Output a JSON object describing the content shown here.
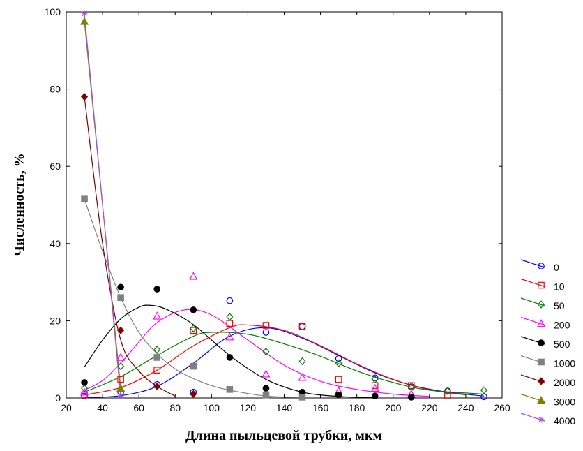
{
  "chart_data": {
    "type": "scatter",
    "xlabel": "Длина пыльцевой трубки, мкм",
    "ylabel": "Численность, %",
    "xlim": [
      20,
      260
    ],
    "ylim": [
      0,
      100
    ],
    "xticks": [
      20,
      40,
      60,
      80,
      100,
      120,
      140,
      160,
      180,
      200,
      220,
      240,
      260
    ],
    "yticks": [
      0,
      20,
      40,
      60,
      80,
      100
    ],
    "x_tick_labels": [
      "20",
      "40",
      "60",
      "80",
      "100",
      "120",
      "140",
      "160",
      "180",
      "200",
      "220",
      "240",
      "260"
    ],
    "y_tick_labels": [
      "0",
      "20",
      "40",
      "60",
      "80",
      "100"
    ],
    "grid": false,
    "legend_position": "right-bottom",
    "series": [
      {
        "name": "0",
        "color": "#0000ff",
        "marker": "circle-open",
        "x": [
          30,
          50,
          70,
          90,
          110,
          130,
          150,
          170,
          190,
          210,
          230,
          250
        ],
        "y": [
          0.5,
          1.5,
          3.5,
          1.5,
          25.2,
          17.0,
          18.5,
          10.2,
          5.2,
          2.9,
          1.8,
          0.3
        ],
        "fit": [
          [
            30,
            0.1
          ],
          [
            50,
            0.6
          ],
          [
            70,
            3.0
          ],
          [
            90,
            9.0
          ],
          [
            110,
            16.0
          ],
          [
            130,
            18.2
          ],
          [
            150,
            15.5
          ],
          [
            170,
            11.0
          ],
          [
            190,
            6.5
          ],
          [
            210,
            3.3
          ],
          [
            230,
            1.5
          ],
          [
            250,
            0.5
          ]
        ]
      },
      {
        "name": "10",
        "color": "#ff0000",
        "marker": "square-open",
        "x": [
          30,
          50,
          70,
          90,
          110,
          130,
          150,
          170,
          190,
          210,
          230
        ],
        "y": [
          0.8,
          4.8,
          7.2,
          17.5,
          19.3,
          18.8,
          18.5,
          4.8,
          3.2,
          3.2,
          0.5
        ],
        "fit": [
          [
            30,
            0.8
          ],
          [
            50,
            2.7
          ],
          [
            70,
            7.2
          ],
          [
            90,
            13.5
          ],
          [
            110,
            18.2
          ],
          [
            120,
            18.9
          ],
          [
            140,
            17.5
          ],
          [
            160,
            13.5
          ],
          [
            180,
            8.8
          ],
          [
            200,
            4.8
          ],
          [
            220,
            2.1
          ],
          [
            240,
            0.8
          ]
        ]
      },
      {
        "name": "50",
        "color": "#008000",
        "marker": "diamond-open",
        "x": [
          30,
          50,
          70,
          90,
          110,
          130,
          150,
          170,
          190,
          210,
          230,
          250
        ],
        "y": [
          2.5,
          8.2,
          12.5,
          18.0,
          21.0,
          12.0,
          9.5,
          9.0,
          4.8,
          2.8,
          1.8,
          2.0
        ],
        "fit": [
          [
            30,
            1.5
          ],
          [
            50,
            5.5
          ],
          [
            70,
            11.0
          ],
          [
            90,
            16.0
          ],
          [
            100,
            17.0
          ],
          [
            120,
            16.5
          ],
          [
            140,
            14.0
          ],
          [
            160,
            10.8
          ],
          [
            180,
            7.0
          ],
          [
            200,
            4.0
          ],
          [
            220,
            2.0
          ],
          [
            250,
            1.0
          ]
        ]
      },
      {
        "name": "200",
        "color": "#ff00ff",
        "marker": "triangle-open",
        "x": [
          30,
          50,
          70,
          90,
          110,
          130,
          150,
          170,
          190,
          210
        ],
        "y": [
          1.5,
          10.5,
          21.2,
          31.5,
          15.8,
          6.2,
          5.3,
          1.8,
          2.5,
          1.0
        ],
        "fit": [
          [
            30,
            2.0
          ],
          [
            40,
            4.5
          ],
          [
            50,
            9.0
          ],
          [
            60,
            14.5
          ],
          [
            70,
            19.5
          ],
          [
            85,
            22.8
          ],
          [
            100,
            21.5
          ],
          [
            120,
            15.0
          ],
          [
            140,
            8.5
          ],
          [
            160,
            4.3
          ],
          [
            180,
            2.2
          ],
          [
            200,
            1.0
          ],
          [
            220,
            0.4
          ]
        ]
      },
      {
        "name": "500",
        "color": "#000000",
        "marker": "circle-filled",
        "x": [
          30,
          50,
          70,
          90,
          110,
          130,
          150,
          170,
          190,
          210
        ],
        "y": [
          4.0,
          28.7,
          28.2,
          22.8,
          10.5,
          2.5,
          1.5,
          0.8,
          0.5,
          0.2
        ],
        "fit": [
          [
            30,
            8.0
          ],
          [
            40,
            15.0
          ],
          [
            50,
            20.5
          ],
          [
            60,
            23.5
          ],
          [
            66,
            24.0
          ],
          [
            75,
            23.0
          ],
          [
            90,
            19.0
          ],
          [
            110,
            11.0
          ],
          [
            130,
            4.8
          ],
          [
            150,
            1.5
          ],
          [
            170,
            0.4
          ],
          [
            190,
            0.1
          ]
        ]
      },
      {
        "name": "1000",
        "color": "#808080",
        "marker": "square-filled",
        "x": [
          30,
          50,
          70,
          90,
          110,
          130,
          150
        ],
        "y": [
          51.5,
          26.0,
          10.5,
          8.2,
          2.2,
          0.8,
          0.2
        ],
        "fit": [
          [
            30,
            51.5
          ],
          [
            40,
            38.0
          ],
          [
            50,
            26.0
          ],
          [
            60,
            17.0
          ],
          [
            70,
            11.5
          ],
          [
            80,
            7.5
          ],
          [
            90,
            5.0
          ],
          [
            100,
            3.2
          ],
          [
            110,
            2.0
          ],
          [
            130,
            0.5
          ],
          [
            150,
            0.1
          ]
        ]
      },
      {
        "name": "2000",
        "color": "#800000",
        "marker": "diamond-filled",
        "x": [
          30,
          50,
          70,
          90
        ],
        "y": [
          78.0,
          17.5,
          3.0,
          1.0
        ],
        "fit": [
          [
            30,
            78.0
          ],
          [
            40,
            40.0
          ],
          [
            50,
            15.0
          ],
          [
            60,
            7.0
          ],
          [
            70,
            3.0
          ],
          [
            80,
            0.5
          ]
        ]
      },
      {
        "name": "3000",
        "color": "#808000",
        "marker": "triangle-filled",
        "x": [
          30,
          50
        ],
        "y": [
          97.5,
          2.5
        ],
        "fit": [
          [
            30,
            97.5
          ],
          [
            50,
            2.5
          ]
        ]
      },
      {
        "name": "4000",
        "color": "#a050e0",
        "marker": "star",
        "x": [
          30,
          50
        ],
        "y": [
          99.5,
          0.5
        ],
        "fit": [
          [
            30,
            99.5
          ],
          [
            50,
            0.5
          ]
        ]
      }
    ]
  }
}
